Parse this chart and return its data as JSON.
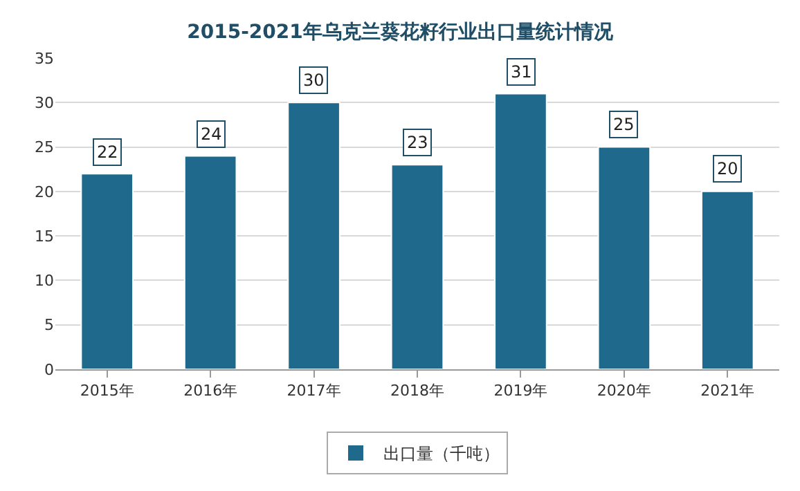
{
  "chart_data": {
    "type": "bar",
    "title": "2015-2021年乌克兰葵花籽行业出口量统计情况",
    "categories": [
      "2015年",
      "2016年",
      "2017年",
      "2018年",
      "2019年",
      "2020年",
      "2021年"
    ],
    "series": [
      {
        "name": "出口量（千吨）",
        "color": "#1f6a8c",
        "values": [
          22,
          24,
          30,
          23,
          31,
          25,
          20
        ]
      }
    ],
    "ylim": [
      0,
      35
    ],
    "yticks": [
      0,
      5,
      10,
      15,
      20,
      25,
      30,
      35
    ],
    "grid": "y",
    "legend": "bottom",
    "data_labels": true
  }
}
